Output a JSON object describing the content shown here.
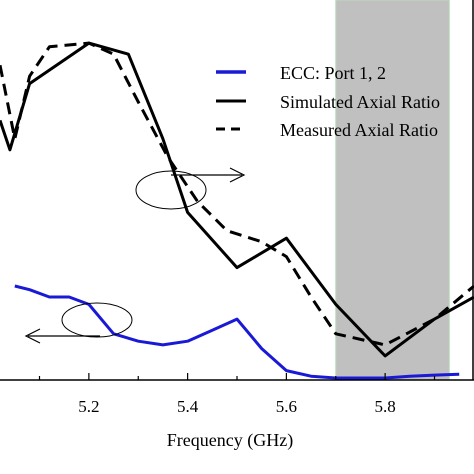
{
  "chart_data": {
    "type": "line",
    "xlabel": "Frequency (GHz)",
    "xlim": [
      5.02,
      5.98
    ],
    "ylim": [
      0,
      1
    ],
    "x_ticks": [
      5.2,
      5.4,
      5.6,
      5.8
    ],
    "x_tick_labels": [
      "5.2",
      "5.4",
      "5.6",
      "5.8"
    ],
    "grid": false,
    "legend_position": "top-right",
    "shaded_band": {
      "x_start": 5.7,
      "x_end": 5.93,
      "color": "#c0c0c0"
    },
    "series": [
      {
        "name": "ECC: Port 1, 2",
        "style": "solid",
        "color": "#1a1ad6",
        "x": [
          5.05,
          5.08,
          5.12,
          5.16,
          5.2,
          5.25,
          5.3,
          5.35,
          5.4,
          5.45,
          5.5,
          5.55,
          5.6,
          5.65,
          5.7,
          5.75,
          5.8,
          5.85,
          5.9,
          5.95
        ],
        "y": [
          0.25,
          0.24,
          0.22,
          0.22,
          0.2,
          0.12,
          0.1,
          0.09,
          0.1,
          0.13,
          0.16,
          0.08,
          0.02,
          0.005,
          0.0,
          0.0,
          0.0,
          0.005,
          0.008,
          0.01
        ]
      },
      {
        "name": "Simulated Axial Ratio",
        "style": "solid",
        "color": "#000000",
        "x": [
          5.02,
          5.04,
          5.08,
          5.2,
          5.28,
          5.35,
          5.4,
          5.5,
          5.6,
          5.7,
          5.8,
          5.9,
          5.98
        ],
        "y": [
          0.7,
          0.62,
          0.8,
          0.91,
          0.88,
          0.65,
          0.45,
          0.3,
          0.38,
          0.2,
          0.06,
          0.16,
          0.22
        ]
      },
      {
        "name": "Measured Axial Ratio",
        "style": "dashed",
        "color": "#000000",
        "x": [
          5.02,
          5.05,
          5.08,
          5.12,
          5.2,
          5.25,
          5.3,
          5.36,
          5.42,
          5.48,
          5.55,
          5.6,
          5.65,
          5.7,
          5.8,
          5.9,
          5.98
        ],
        "y": [
          0.85,
          0.65,
          0.82,
          0.9,
          0.91,
          0.88,
          0.75,
          0.6,
          0.48,
          0.4,
          0.37,
          0.33,
          0.22,
          0.12,
          0.09,
          0.16,
          0.25
        ]
      }
    ]
  }
}
